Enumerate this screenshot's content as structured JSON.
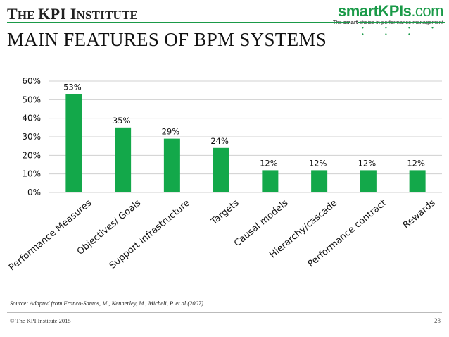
{
  "header": {
    "org_title_first": "T",
    "org_title_rest_1": "HE ",
    "org_title_kpi": "KPI",
    "org_title_inst_first": " I",
    "org_title_inst_rest": "NSTITUTE",
    "brand_smart": "smart",
    "brand_kpis": "KPIs",
    "brand_com": ".com",
    "brand_tag_prefix": "The ",
    "brand_tag_bold": "smart",
    "brand_tag_suffix": " choice in performance management",
    "dots": "• • • • • • •"
  },
  "page_title": "MAIN FEATURES OF BPM SYSTEMS",
  "chart_data": {
    "type": "bar",
    "categories": [
      "Performance Measures",
      "Objectives/ Goals",
      "Support infrastructure",
      "Targets",
      "Causal models",
      "Hierarchy/cascade",
      "Performance contract",
      "Rewards"
    ],
    "values": [
      53,
      35,
      29,
      24,
      12,
      12,
      12,
      12
    ],
    "value_labels": [
      "53%",
      "35%",
      "29%",
      "24%",
      "12%",
      "12%",
      "12%",
      "12%"
    ],
    "y_ticks": [
      "0%",
      "10%",
      "20%",
      "30%",
      "40%",
      "50%",
      "60%"
    ],
    "ylim": [
      0,
      60
    ],
    "grid": true,
    "legend": "none",
    "bar_color": "#13a84a",
    "grid_color": "#d0d0d0"
  },
  "source": "Source: Adapted from Franco-Santos, M., Kennerley, M., Micheli, P. et al (2007)",
  "footer": {
    "copyright": "© The KPI Institute 2015",
    "page_number": "23"
  }
}
